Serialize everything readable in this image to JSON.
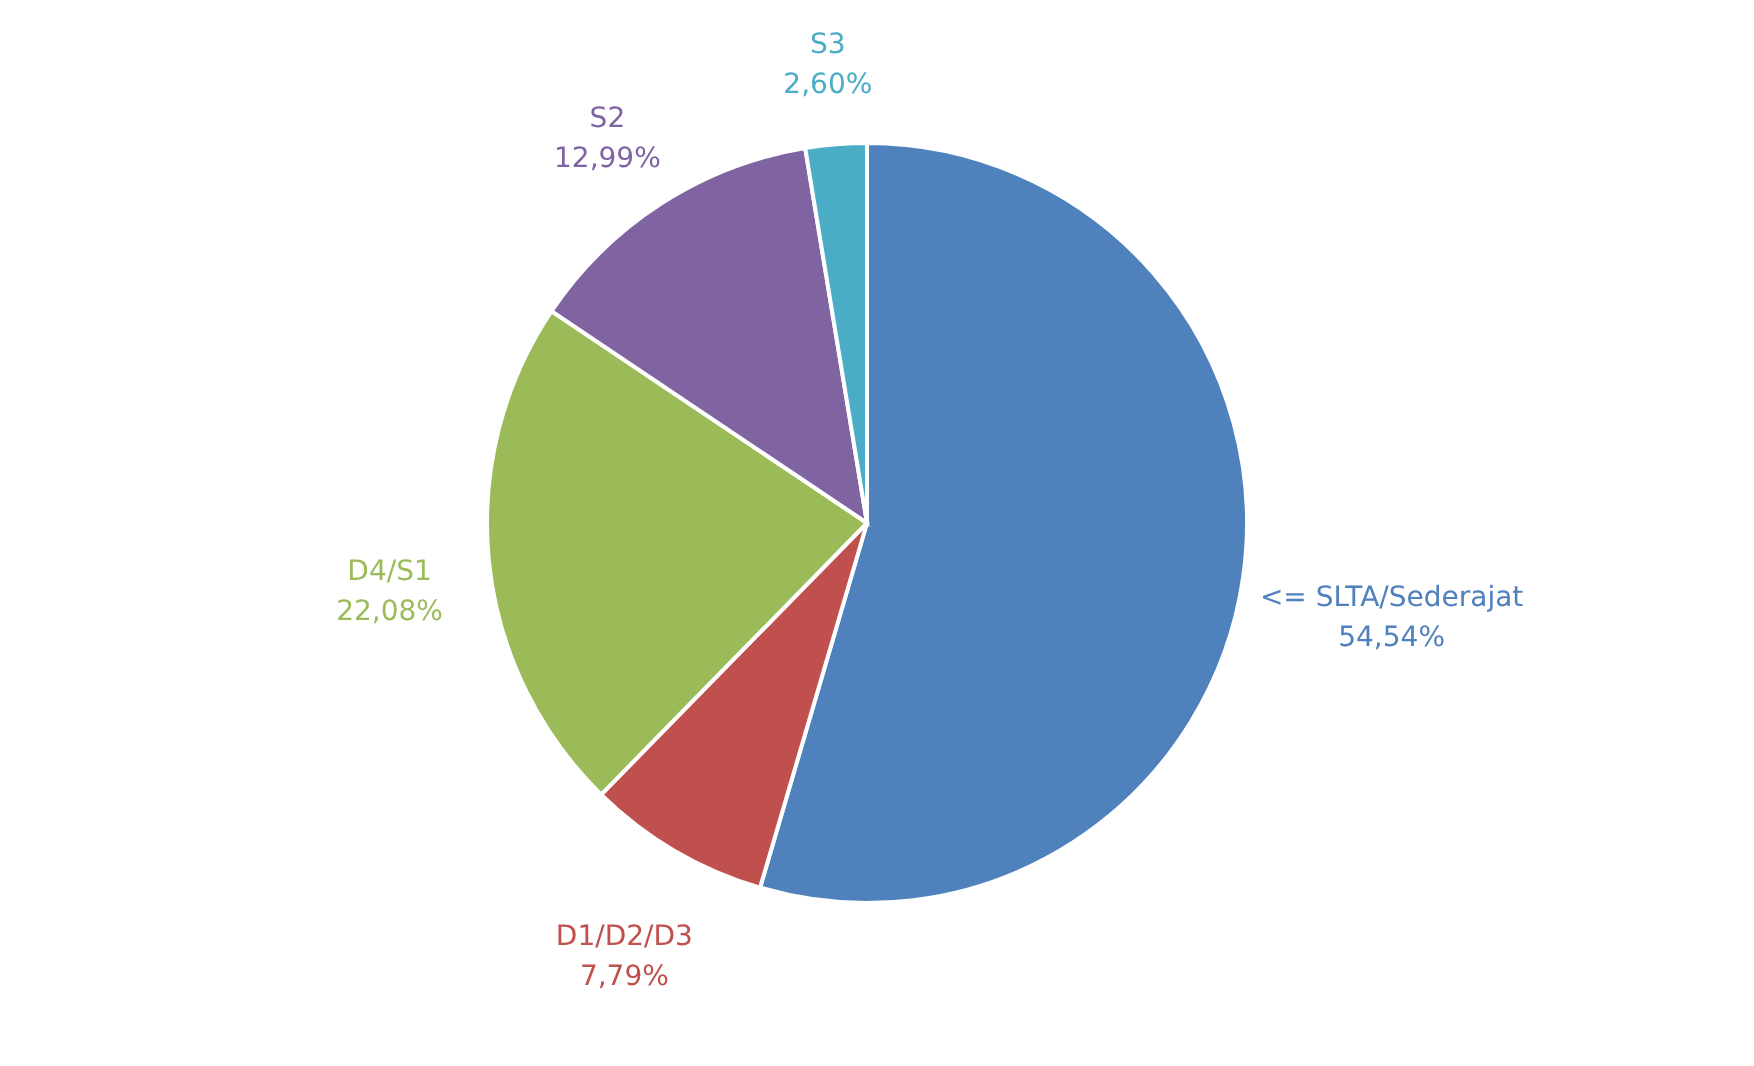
{
  "chart_data": {
    "type": "pie",
    "categories": [
      "<= SLTA/Sederajat",
      "D1/D2/D3",
      "D4/S1",
      "S2",
      "S3"
    ],
    "values": [
      54.54,
      7.79,
      22.08,
      12.99,
      2.6
    ],
    "colors": [
      "#4f81bd",
      "#c0504d",
      "#9bbb59",
      "#8064a2",
      "#4bacc6"
    ],
    "value_labels": [
      "54,54%",
      "7,79%",
      "22,08%",
      "12,99%",
      "2,60%"
    ]
  }
}
